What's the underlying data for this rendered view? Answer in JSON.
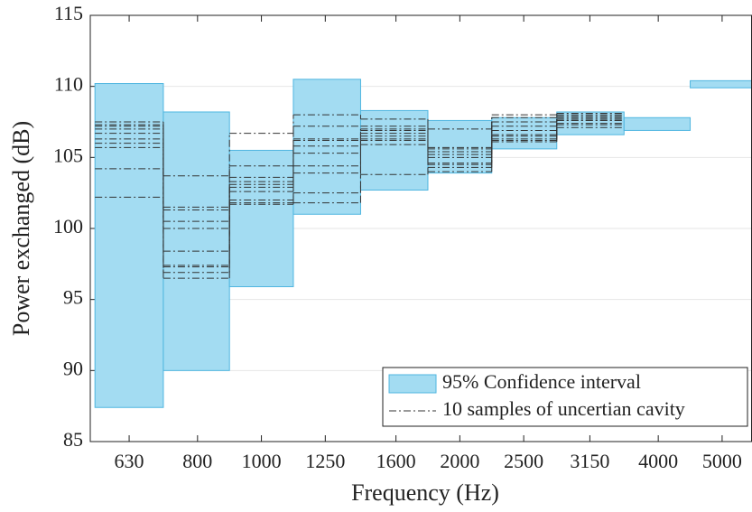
{
  "chart_data": {
    "type": "step-band",
    "x_label": "Frequency (Hz)",
    "y_label": "Power exchanged (dB)",
    "x": [
      630,
      800,
      1000,
      1250,
      1600,
      2000,
      2500,
      3150,
      4000,
      5000
    ],
    "xlim": [
      550,
      5550
    ],
    "log_x": true,
    "ylim": [
      85,
      115
    ],
    "yticks": [
      85,
      90,
      95,
      100,
      105,
      110,
      115
    ],
    "grid": true,
    "legend": "lower right",
    "band": {
      "name": "95% Confidence interval",
      "color": "#a3dcf2",
      "edge_color": "#4fb6e0",
      "lower": [
        87.4,
        90.0,
        95.9,
        101.0,
        102.7,
        103.9,
        105.6,
        106.6,
        106.9,
        109.9
      ],
      "upper": [
        110.2,
        108.2,
        105.5,
        110.5,
        108.3,
        107.6,
        107.8,
        108.2,
        107.8,
        110.4
      ]
    },
    "samples": {
      "name": "10 samples of uncertian cavity",
      "color": "#333333",
      "values": [
        [
          107.5,
          103.7,
          106.7,
          108.0,
          107.7,
          107.0,
          108.0,
          108.1,
          null,
          null
        ],
        [
          107.3,
          101.5,
          104.4,
          107.2,
          107.2,
          105.7,
          107.8,
          108.0,
          null,
          null
        ],
        [
          107.0,
          101.3,
          103.6,
          106.3,
          106.9,
          105.6,
          107.2,
          107.9,
          null,
          null
        ],
        [
          106.7,
          100.5,
          103.3,
          106.2,
          106.7,
          105.4,
          106.9,
          107.8,
          null,
          null
        ],
        [
          106.3,
          100.0,
          103.1,
          105.8,
          106.5,
          105.2,
          106.6,
          107.7,
          null,
          null
        ],
        [
          106.0,
          98.4,
          102.9,
          105.3,
          106.3,
          105.0,
          106.5,
          107.6,
          null,
          null
        ],
        [
          105.7,
          97.4,
          102.6,
          104.4,
          106.2,
          104.6,
          106.3,
          107.4,
          null,
          null
        ],
        [
          104.2,
          97.3,
          102.0,
          103.9,
          105.9,
          104.5,
          106.2,
          107.3,
          null,
          null
        ],
        [
          102.2,
          96.9,
          101.8,
          102.5,
          103.8,
          104.3,
          106.1,
          107.1,
          null,
          null
        ],
        [
          107.2,
          96.5,
          101.7,
          101.8,
          107.0,
          104.0,
          107.5,
          107.6,
          null,
          null
        ]
      ]
    }
  }
}
